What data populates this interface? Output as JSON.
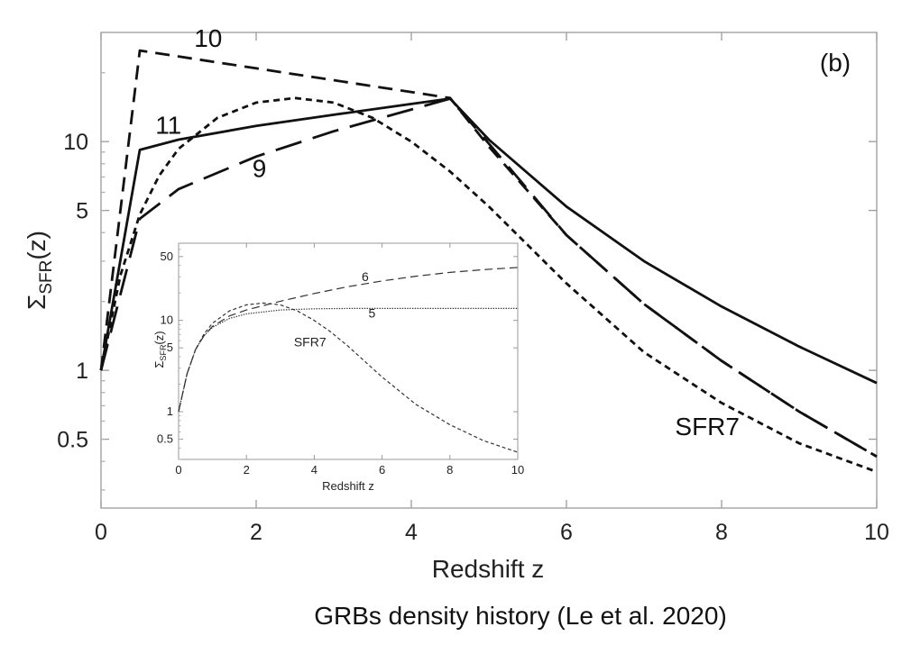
{
  "caption": "GRBs density history (Le et al. 2020)",
  "chart_data": [
    {
      "type": "line",
      "panel_label": "(b)",
      "xlabel": "Redshift z",
      "ylabel_base": "Σ",
      "ylabel_sub": "SFR",
      "ylabel_tail": "(z)",
      "xlim": [
        0,
        10
      ],
      "ylim": [
        0.25,
        30
      ],
      "yscale": "log",
      "xticks": [
        0,
        2,
        4,
        6,
        8,
        10
      ],
      "yticks": [
        0.5,
        1,
        5,
        10
      ],
      "series": [
        {
          "name": "10",
          "style": "dashed",
          "x": [
            0,
            0.5,
            4.5,
            5,
            6,
            7,
            8,
            9,
            10
          ],
          "y": [
            1.0,
            25.0,
            15.5,
            9.5,
            3.9,
            1.95,
            1.1,
            0.66,
            0.42
          ]
        },
        {
          "name": "11",
          "style": "solid",
          "x": [
            0,
            0.5,
            1,
            2,
            3,
            4,
            4.5,
            5,
            6,
            7,
            8,
            9,
            10
          ],
          "y": [
            1.0,
            9.2,
            10.2,
            11.7,
            13.1,
            14.6,
            15.4,
            10.2,
            5.2,
            3.0,
            1.9,
            1.27,
            0.88
          ]
        },
        {
          "name": "9",
          "style": "long-dashed",
          "x": [
            0,
            0.5,
            1,
            2,
            3,
            4,
            4.5,
            5,
            6,
            7,
            8,
            9,
            10
          ],
          "y": [
            1.0,
            4.6,
            6.2,
            8.6,
            11.1,
            13.8,
            15.4,
            9.8,
            3.9,
            1.95,
            1.1,
            0.66,
            0.42
          ]
        },
        {
          "name": "SFR7",
          "style": "short-dashed",
          "x": [
            0,
            0.25,
            0.5,
            0.75,
            1,
            1.5,
            2,
            2.5,
            3,
            3.5,
            4,
            4.5,
            5,
            6,
            7,
            8,
            9,
            10
          ],
          "y": [
            1.0,
            2.6,
            4.8,
            7.1,
            9.3,
            12.7,
            14.8,
            15.5,
            14.8,
            12.7,
            10.0,
            7.4,
            5.2,
            2.4,
            1.2,
            0.72,
            0.48,
            0.36
          ]
        }
      ],
      "annotations": [
        {
          "text": "10",
          "x": 1.2,
          "y": 26
        },
        {
          "text": "11",
          "x": 0.7,
          "y": 10.8
        },
        {
          "text": "9",
          "x": 1.95,
          "y": 7.0
        },
        {
          "text": "SFR7",
          "x": 7.4,
          "y": 0.52
        }
      ]
    },
    {
      "type": "line",
      "panel": "inset",
      "xlabel": "Redshift z",
      "ylabel_base": "Σ",
      "ylabel_sub": "SFR",
      "ylabel_tail": "(z)",
      "xlim": [
        0,
        10
      ],
      "ylim": [
        0.3,
        70
      ],
      "yscale": "log",
      "xticks": [
        0,
        2,
        4,
        6,
        8,
        10
      ],
      "yticks": [
        0.5,
        1,
        5,
        10,
        50
      ],
      "series": [
        {
          "name": "6",
          "style": "dashed",
          "x": [
            0,
            0.25,
            0.5,
            0.75,
            1,
            1.5,
            2,
            3,
            4,
            5,
            6,
            7,
            8,
            9,
            10
          ],
          "y": [
            1.0,
            2.6,
            4.8,
            6.8,
            8.6,
            11.2,
            13.0,
            16.2,
            19.7,
            23.4,
            27.0,
            30.5,
            33.5,
            36.0,
            38.0
          ]
        },
        {
          "name": "5",
          "style": "dotted",
          "x": [
            0,
            0.25,
            0.5,
            0.75,
            1,
            1.5,
            2,
            3,
            4,
            5,
            6,
            7,
            8,
            9,
            10
          ],
          "y": [
            1.0,
            2.6,
            4.8,
            6.8,
            8.4,
            10.5,
            11.8,
            13.0,
            13.4,
            13.5,
            13.5,
            13.5,
            13.5,
            13.5,
            13.5
          ]
        },
        {
          "name": "SFR7",
          "style": "short-dashed",
          "x": [
            0,
            0.25,
            0.5,
            0.75,
            1,
            1.5,
            2,
            2.5,
            3,
            3.5,
            4,
            4.5,
            5,
            6,
            7,
            8,
            9,
            10
          ],
          "y": [
            1.0,
            2.6,
            4.8,
            7.1,
            9.3,
            12.7,
            14.8,
            15.5,
            14.8,
            12.7,
            10.0,
            7.4,
            5.2,
            2.4,
            1.2,
            0.72,
            0.48,
            0.36
          ]
        }
      ],
      "annotations": [
        {
          "text": "6",
          "x": 5.4,
          "y": 27
        },
        {
          "text": "5",
          "x": 5.6,
          "y": 10.8
        },
        {
          "text": "SFR7",
          "x": 3.4,
          "y": 5.2
        }
      ]
    }
  ]
}
